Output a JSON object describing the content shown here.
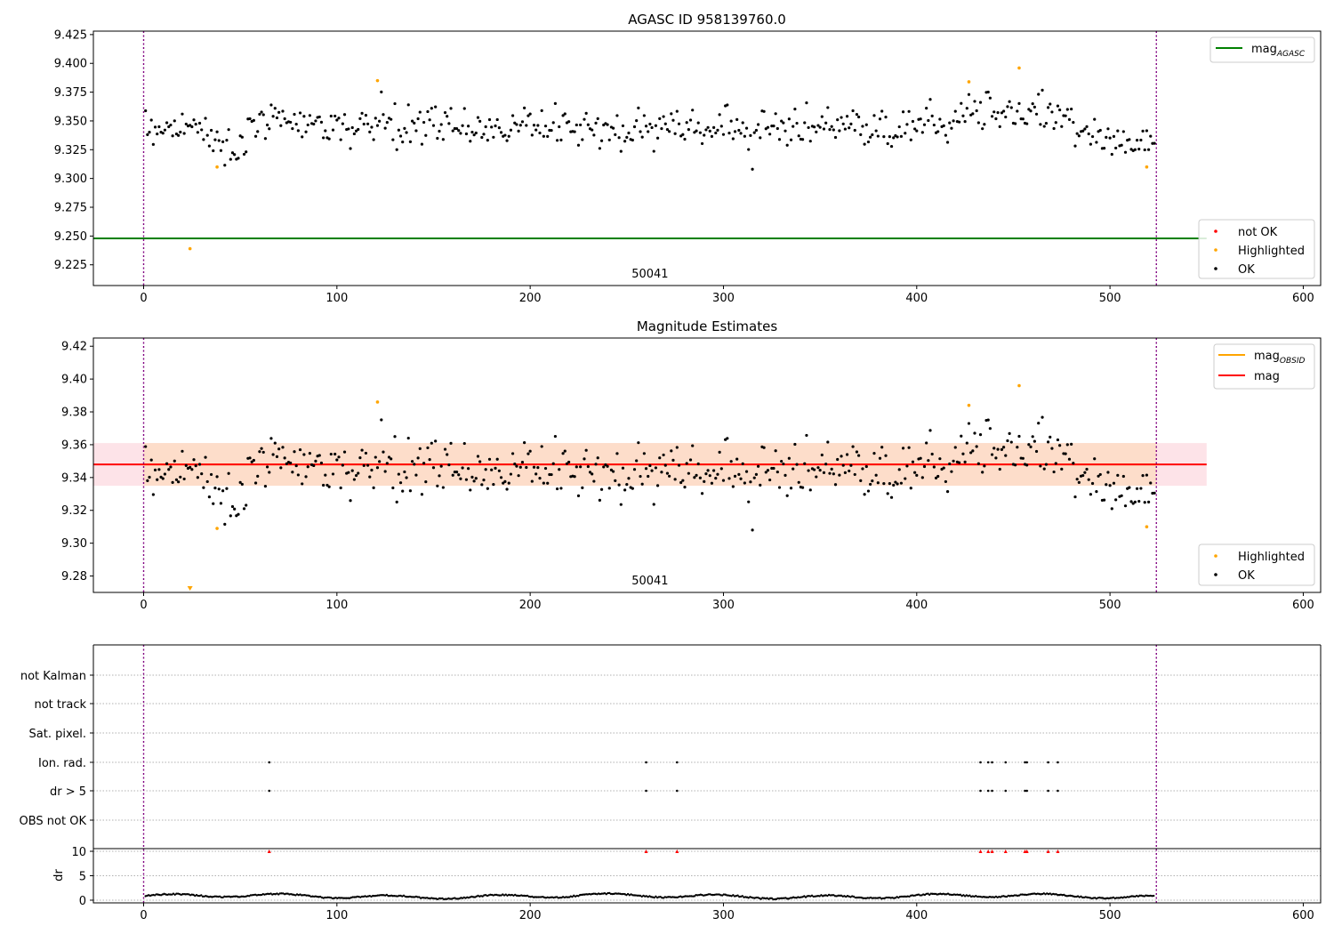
{
  "figure": {
    "panels": {
      "agasc": {
        "title": "AGASC ID 958139760.0",
        "obsid_label": "50041",
        "legend_line": {
          "main": "mag",
          "sub": "AGASC"
        },
        "legend_scatter": [
          "not OK",
          "Highlighted",
          "OK"
        ]
      },
      "estimates": {
        "title": "Magnitude Estimates",
        "obsid_label": "50041",
        "legend_lines": [
          {
            "main": "mag",
            "sub": "OBSID"
          },
          {
            "main": "mag",
            "sub": ""
          }
        ],
        "legend_scatter": [
          "Highlighted",
          "OK"
        ]
      },
      "flags": {
        "flag_labels": [
          "not Kalman",
          "not track",
          "Sat. pixel.",
          "Ion. rad.",
          "dr > 5",
          "OBS not OK"
        ],
        "dr_label": "dr"
      }
    }
  },
  "chart_data": [
    {
      "type": "scatter",
      "title": "AGASC ID 958139760.0",
      "xlabel": "",
      "ylabel": "",
      "xlim": [
        -26,
        609
      ],
      "ylim": [
        9.207,
        9.428
      ],
      "xticks": [
        0,
        100,
        200,
        300,
        400,
        500,
        600
      ],
      "yticks": [
        9.225,
        9.25,
        9.275,
        9.3,
        9.325,
        9.35,
        9.375,
        9.4,
        9.425
      ],
      "ytick_labels": [
        "9.225",
        "9.250",
        "9.275",
        "9.300",
        "9.325",
        "9.350",
        "9.375",
        "9.400",
        "9.425"
      ],
      "obs_boundaries": [
        0,
        524
      ],
      "obsid_annotation": {
        "text": "50041",
        "x": 262
      },
      "reference_line": {
        "name": "mag AGASC",
        "y": 9.248,
        "x_range": [
          -26,
          550
        ],
        "color": "#008000"
      },
      "series": [
        {
          "name": "not OK",
          "color": "#ff0000",
          "points": []
        },
        {
          "name": "Highlighted",
          "color": "#ffa500",
          "points": [
            [
              24,
              9.239
            ],
            [
              38,
              9.31
            ],
            [
              121,
              9.385
            ],
            [
              427,
              9.384
            ],
            [
              453,
              9.396
            ],
            [
              519,
              9.31
            ]
          ]
        },
        {
          "name": "OK",
          "color": "#000000",
          "points": "~520 samples along the track: baseline ≈ 9.345 with scatter ±0.015; dip ≈ 9.32 near x≈40–60, rise ≈ 9.36–9.37 near x≈400–470, dip ≈ 9.32 near x≈480–520"
        }
      ],
      "legend": {
        "lines_position": "top-right",
        "scatter_position": "lower-right"
      }
    },
    {
      "type": "scatter",
      "title": "Magnitude Estimates",
      "xlabel": "",
      "ylabel": "",
      "xlim": [
        -26,
        609
      ],
      "ylim": [
        9.27,
        9.425
      ],
      "xticks": [
        0,
        100,
        200,
        300,
        400,
        500,
        600
      ],
      "yticks": [
        9.28,
        9.3,
        9.32,
        9.34,
        9.36,
        9.38,
        9.4,
        9.42
      ],
      "ytick_labels": [
        "9.28",
        "9.30",
        "9.32",
        "9.34",
        "9.36",
        "9.38",
        "9.40",
        "9.42"
      ],
      "obs_boundaries": [
        0,
        524
      ],
      "obsid_annotation": {
        "text": "50041",
        "x": 262
      },
      "lines": [
        {
          "name": "mag OBSID",
          "y": 9.348,
          "color": "#ffa500",
          "band": [
            9.335,
            9.361
          ],
          "band_color": "#fddbc7",
          "x_range": [
            0,
            524
          ]
        },
        {
          "name": "mag",
          "y": 9.348,
          "color": "#ff0000",
          "band": [
            9.335,
            9.361
          ],
          "band_color": "#fde0e6",
          "x_range": [
            -26,
            550
          ]
        }
      ],
      "series": [
        {
          "name": "Highlighted",
          "color": "#ffa500",
          "points": [
            [
              24,
              9.272
            ],
            [
              38,
              9.309
            ],
            [
              121,
              9.386
            ],
            [
              427,
              9.384
            ],
            [
              453,
              9.396
            ],
            [
              519,
              9.31
            ]
          ]
        },
        {
          "name": "OK",
          "color": "#000000",
          "points": "same OK samples as panel 1"
        }
      ],
      "legend": {
        "lines_position": "top-right",
        "scatter_position": "lower-right"
      }
    },
    {
      "type": "scatter",
      "title": "",
      "xlim": [
        -26,
        609
      ],
      "xticks": [
        0,
        100,
        200,
        300,
        400,
        500,
        600
      ],
      "obs_boundaries": [
        0,
        524
      ],
      "flag_rows": [
        "not Kalman",
        "not track",
        "Sat. pixel.",
        "Ion. rad.",
        "dr > 5",
        "OBS not OK"
      ],
      "flag_points": {
        "Ion. rad.": [
          65,
          260,
          276,
          433,
          437,
          439,
          446,
          456,
          457,
          468,
          473
        ],
        "dr > 5": [
          65,
          260,
          276,
          433,
          437,
          439,
          446,
          456,
          457,
          468,
          473
        ]
      }
    },
    {
      "type": "scatter",
      "title": "",
      "ylabel": "dr",
      "xlim": [
        -26,
        609
      ],
      "ylim": [
        -0.5,
        10.5
      ],
      "xticks": [
        0,
        100,
        200,
        300,
        400,
        500,
        600
      ],
      "yticks": [
        0,
        5,
        10
      ],
      "obs_boundaries": [
        0,
        524
      ],
      "series": [
        {
          "name": "dr",
          "color": "#000000",
          "points": "~520 samples in 0–1.5 along the track"
        },
        {
          "name": "dr clipped",
          "color": "#ff0000",
          "marker": "triangle-up",
          "y": 10,
          "x": [
            65,
            260,
            276,
            433,
            437,
            439,
            446,
            456,
            457,
            468,
            473
          ]
        }
      ]
    }
  ]
}
